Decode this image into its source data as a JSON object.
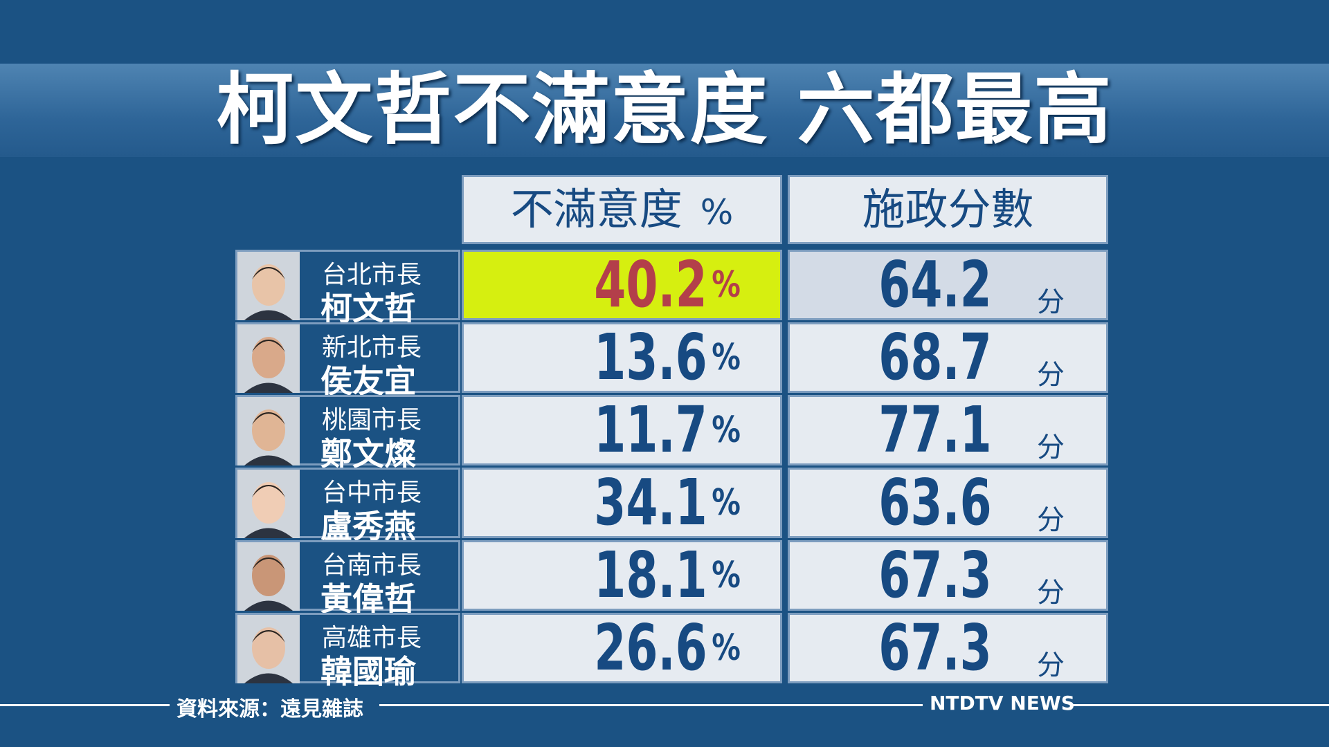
{
  "title": "柯文哲不滿意度 六都最高",
  "header": {
    "dissatisfaction": "不滿意度",
    "dissatisfaction_unit": "%",
    "score": "施政分數",
    "score_unit": "分"
  },
  "rows": [
    {
      "role": "台北市長",
      "name": "柯文哲",
      "dissatisfaction": 40.2,
      "score": 64.2
    },
    {
      "role": "新北市長",
      "name": "侯友宜",
      "dissatisfaction": 13.6,
      "score": 68.7
    },
    {
      "role": "桃園市長",
      "name": "鄭文燦",
      "dissatisfaction": 11.7,
      "score": 77.1
    },
    {
      "role": "台中市長",
      "name": "盧秀燕",
      "dissatisfaction": 34.1,
      "score": 63.6
    },
    {
      "role": "台南市長",
      "name": "黃偉哲",
      "dissatisfaction": 18.1,
      "score": 67.3
    },
    {
      "role": "高雄市長",
      "name": "韓國瑜",
      "dissatisfaction": 26.6,
      "score": 67.3
    }
  ],
  "footer": {
    "source": "資料來源：遠見雜誌",
    "brand": "NTDTV NEWS"
  }
}
